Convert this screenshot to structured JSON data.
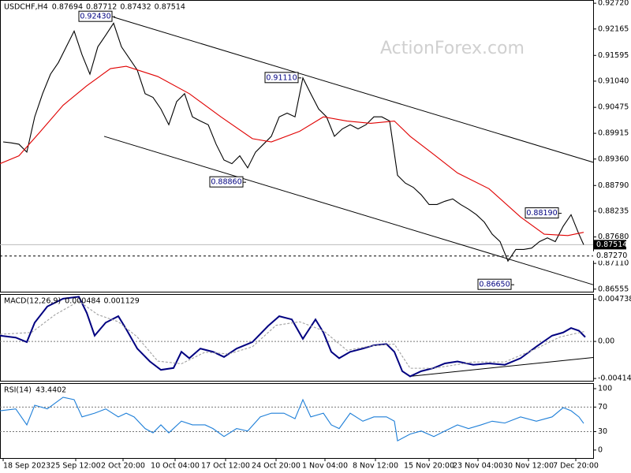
{
  "chart_data": [
    {
      "type": "line",
      "title": "USDCHF,H4",
      "ohlc": [
        0.87694,
        0.87712,
        0.87432,
        0.87514
      ],
      "watermark": "ActionForex.com",
      "xlim": [
        0,
        376
      ],
      "ylim": [
        0.865,
        0.9279
      ],
      "yticks": [
        {
          "value": 0.9272,
          "label": "0.92720"
        },
        {
          "value": 0.92165,
          "label": "0.92165"
        },
        {
          "value": 0.91595,
          "label": "0.91595"
        },
        {
          "value": 0.9104,
          "label": "0.91040"
        },
        {
          "value": 0.90475,
          "label": "0.90475"
        },
        {
          "value": 0.89915,
          "label": "0.89915"
        },
        {
          "value": 0.8936,
          "label": "0.89360"
        },
        {
          "value": 0.8879,
          "label": "0.88790"
        },
        {
          "value": 0.88235,
          "label": "0.88235"
        },
        {
          "value": 0.8768,
          "label": "0.87680"
        },
        {
          "value": 0.8711,
          "label": "0.87110"
        },
        {
          "value": 0.86555,
          "label": "0.86555"
        }
      ],
      "series": [
        {
          "color": "#000000",
          "x": [
            2,
            7,
            12,
            17,
            22,
            27,
            32,
            37,
            42,
            47,
            52,
            57,
            62,
            67,
            72,
            77,
            82,
            87,
            92,
            97,
            102,
            107,
            112,
            117,
            122,
            127,
            132,
            137,
            142,
            147,
            152,
            157,
            162,
            167,
            172,
            177,
            182,
            187,
            192,
            197,
            202,
            207,
            212,
            217,
            222,
            227,
            232,
            237,
            242,
            247,
            252,
            257,
            262,
            267,
            272,
            277,
            282,
            287,
            292,
            297,
            302,
            307,
            312,
            317,
            322,
            327,
            332,
            337,
            342,
            347,
            352,
            357,
            362,
            367,
            370
          ],
          "values": [
            0.8973,
            0.8971,
            0.8968,
            0.8951,
            0.9027,
            0.9077,
            0.9119,
            0.9144,
            0.9178,
            0.9212,
            0.9161,
            0.9119,
            0.9178,
            0.9203,
            0.9229,
            0.9178,
            0.9153,
            0.9128,
            0.9077,
            0.9069,
            0.9044,
            0.901,
            0.906,
            0.9077,
            0.9027,
            0.9018,
            0.901,
            0.8968,
            0.8934,
            0.8926,
            0.8943,
            0.8917,
            0.8951,
            0.8968,
            0.8985,
            0.9027,
            0.9035,
            0.9027,
            0.9111,
            0.9077,
            0.9044,
            0.9027,
            0.8985,
            0.9001,
            0.901,
            0.9001,
            0.901,
            0.9027,
            0.9027,
            0.9018,
            0.8901,
            0.8884,
            0.8875,
            0.8859,
            0.8838,
            0.8838,
            0.8845,
            0.885,
            0.8838,
            0.8828,
            0.8816,
            0.88,
            0.8774,
            0.8758,
            0.8716,
            0.8741,
            0.8741,
            0.8744,
            0.8758,
            0.8766,
            0.8758,
            0.8791,
            0.8816,
            0.8774,
            0.87514
          ]
        },
        {
          "color": "#e00000",
          "x": [
            0,
            12,
            25,
            40,
            55,
            70,
            80,
            100,
            120,
            140,
            160,
            172,
            190,
            205,
            220,
            235,
            250,
            260,
            275,
            290,
            310,
            330,
            345,
            360,
            370
          ],
          "values": [
            0.8926,
            0.8943,
            0.8993,
            0.9052,
            0.9094,
            0.9131,
            0.9136,
            0.9114,
            0.9077,
            0.9027,
            0.898,
            0.8973,
            0.8996,
            0.9027,
            0.9018,
            0.9013,
            0.9018,
            0.8985,
            0.8946,
            0.8906,
            0.8872,
            0.8811,
            0.8774,
            0.8771,
            0.8778
          ]
        }
      ],
      "trendlines": [
        {
          "color": "#000000",
          "x": [
            72,
            376
          ],
          "values": [
            0.9242,
            0.8929
          ]
        },
        {
          "color": "#000000",
          "x": [
            66,
            376
          ],
          "values": [
            0.8985,
            0.8665
          ]
        }
      ],
      "annotations": [
        {
          "x": 72,
          "value": 0.9243,
          "label": "0.92430"
        },
        {
          "x": 190,
          "value": 0.9111,
          "label": "0.91110"
        },
        {
          "x": 155,
          "value": 0.8886,
          "label": "0.88860"
        },
        {
          "x": 355,
          "value": 0.8819,
          "label": "0.88190"
        },
        {
          "x": 325,
          "value": 0.8665,
          "label": "0.86650"
        }
      ],
      "price_levels": [
        {
          "value": 0.87514,
          "label": "0.87514",
          "style": "solid"
        },
        {
          "value": 0.8727,
          "label": "0.87270",
          "style": "dashed"
        }
      ]
    },
    {
      "type": "line",
      "title": "MACD(12,26,9)",
      "readout": [
        0.000484,
        0.001129
      ],
      "xlim": [
        0,
        376
      ],
      "ylim": [
        -0.0044,
        0.0053
      ],
      "yticks": [
        0.004738,
        {
          "value": 0,
          "label": "0.00"
        },
        -0.004144
      ],
      "zero_line": 0,
      "series": [
        {
          "color": "#000080",
          "x": [
            0,
            10,
            17,
            22,
            30,
            40,
            50,
            55,
            60,
            67,
            75,
            80,
            87,
            95,
            102,
            110,
            115,
            120,
            127,
            135,
            142,
            150,
            160,
            170,
            177,
            185,
            192,
            200,
            205,
            210,
            215,
            222,
            230,
            237,
            245,
            250,
            255,
            260,
            267,
            275,
            282,
            290,
            300,
            310,
            320,
            330,
            340,
            350,
            357,
            362,
            367,
            371
          ],
          "values": [
            0.00065,
            0.00043,
            -7e-05,
            0.0021,
            0.00391,
            0.00478,
            0.005,
            0.00319,
            0.00065,
            0.0021,
            0.00282,
            0.00138,
            -0.0008,
            -0.00224,
            -0.00318,
            -0.00297,
            -0.00116,
            -0.00188,
            -0.0008,
            -0.00116,
            -0.00174,
            -0.0008,
            -7e-05,
            0.00174,
            0.00282,
            0.00246,
            0.00029,
            0.00246,
            0.00101,
            -0.00116,
            -0.00188,
            -0.00116,
            -0.0008,
            -0.00043,
            -0.00029,
            -0.00116,
            -0.00333,
            -0.00391,
            -0.00333,
            -0.00297,
            -0.00246,
            -0.00224,
            -0.00261,
            -0.00246,
            -0.00261,
            -0.00188,
            -0.00058,
            0.00065,
            0.001,
            0.0015,
            0.0012,
            0.000484
          ]
        },
        {
          "color": "#a0a0a0",
          "dashed": true,
          "x": [
            0,
            20,
            35,
            50,
            62,
            75,
            87,
            100,
            115,
            130,
            145,
            160,
            175,
            190,
            205,
            220,
            235,
            250,
            260,
            275,
            300,
            320,
            340,
            355,
            371
          ],
          "values": [
            0.0008,
            0.001,
            0.003,
            0.0045,
            0.003,
            0.0022,
            0.0005,
            -0.0022,
            -0.0025,
            -0.0012,
            -0.0014,
            -0.0006,
            0.0018,
            0.0022,
            0.0012,
            -0.001,
            -0.0005,
            -0.0003,
            -0.003,
            -0.003,
            -0.0023,
            -0.0023,
            -0.0008,
            0.0005,
            0.001129
          ]
        }
      ],
      "trendlines": [
        {
          "color": "#000000",
          "x": [
            260,
            376
          ],
          "values": [
            -0.0039,
            -0.0018
          ]
        }
      ]
    },
    {
      "type": "line",
      "title": "RSI(14)",
      "readout": [
        43.4402
      ],
      "xlim": [
        0,
        376
      ],
      "ylim": [
        -13,
        109
      ],
      "yticks": [
        100,
        70,
        30,
        0
      ],
      "levels": [
        70,
        30
      ],
      "xticks": [
        {
          "value": 2,
          "label": "18 Sep 2023"
        },
        {
          "value": 48,
          "label": "25 Sep 12:00"
        },
        {
          "value": 78,
          "label": "2 Oct 20:00"
        },
        {
          "value": 111,
          "label": "10 Oct 04:00"
        },
        {
          "value": 143,
          "label": "17 Oct 12:00"
        },
        {
          "value": 175,
          "label": "24 Oct 20:00"
        },
        {
          "value": 206,
          "label": "1 Nov 04:00"
        },
        {
          "value": 238,
          "label": "8 Nov 12:00"
        },
        {
          "value": 272,
          "label": "15 Nov 20:00"
        },
        {
          "value": 303,
          "label": "23 Nov 04:00"
        },
        {
          "value": 335,
          "label": "30 Nov 12:00"
        },
        {
          "value": 365,
          "label": "7 Dec 20:00"
        }
      ],
      "series": [
        {
          "color": "#1e7fd8",
          "x": [
            0,
            10,
            17,
            22,
            30,
            40,
            47,
            52,
            60,
            67,
            75,
            80,
            85,
            92,
            97,
            102,
            107,
            115,
            122,
            130,
            135,
            142,
            150,
            157,
            165,
            172,
            180,
            187,
            192,
            197,
            205,
            210,
            215,
            222,
            230,
            237,
            245,
            250,
            252,
            260,
            267,
            275,
            282,
            290,
            297,
            305,
            312,
            320,
            330,
            340,
            350,
            357,
            362,
            367,
            370
          ],
          "values": [
            64,
            67,
            41,
            73,
            67,
            86,
            82,
            54,
            60,
            67,
            54,
            60,
            54,
            35,
            28,
            41,
            28,
            47,
            41,
            41,
            35,
            22,
            35,
            31,
            54,
            60,
            60,
            51,
            82,
            54,
            60,
            41,
            35,
            60,
            47,
            54,
            54,
            47,
            15,
            26,
            31,
            22,
            31,
            41,
            35,
            41,
            47,
            44,
            54,
            47,
            54,
            69,
            64,
            54,
            43.4402
          ]
        }
      ]
    }
  ]
}
